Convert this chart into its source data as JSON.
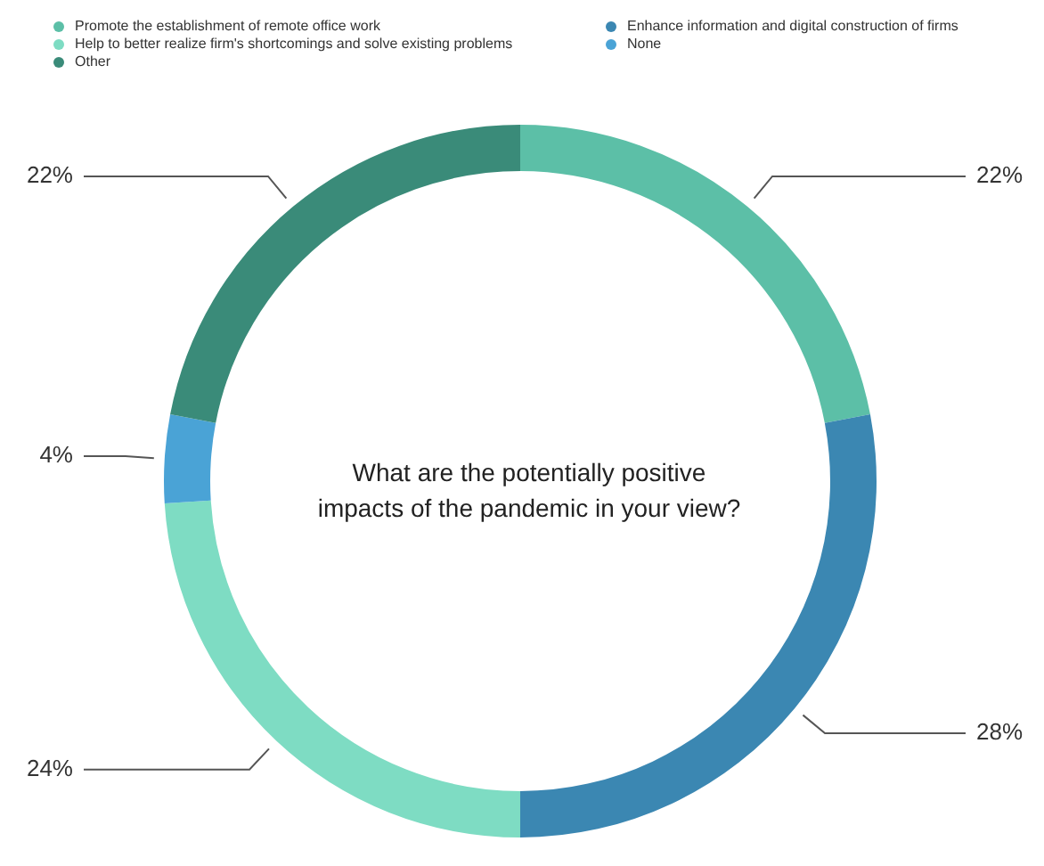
{
  "chart_data": {
    "type": "donut",
    "title": "What are the potentially positive impacts of the pandemic in your view?",
    "categories": [
      "Promote the establishment of remote office work",
      "Enhance information and digital construction of firms",
      "Help to better realize firm's shortcomings and solve existing problems",
      "None",
      "Other"
    ],
    "values": [
      22,
      28,
      24,
      4,
      22
    ],
    "colors": [
      "#5cbfa7",
      "#3b87b2",
      "#7edcc3",
      "#4aa3d6",
      "#3a8b79"
    ],
    "value_labels": [
      "22%",
      "28%",
      "24%",
      "4%",
      "22%"
    ],
    "legend": "top left"
  }
}
